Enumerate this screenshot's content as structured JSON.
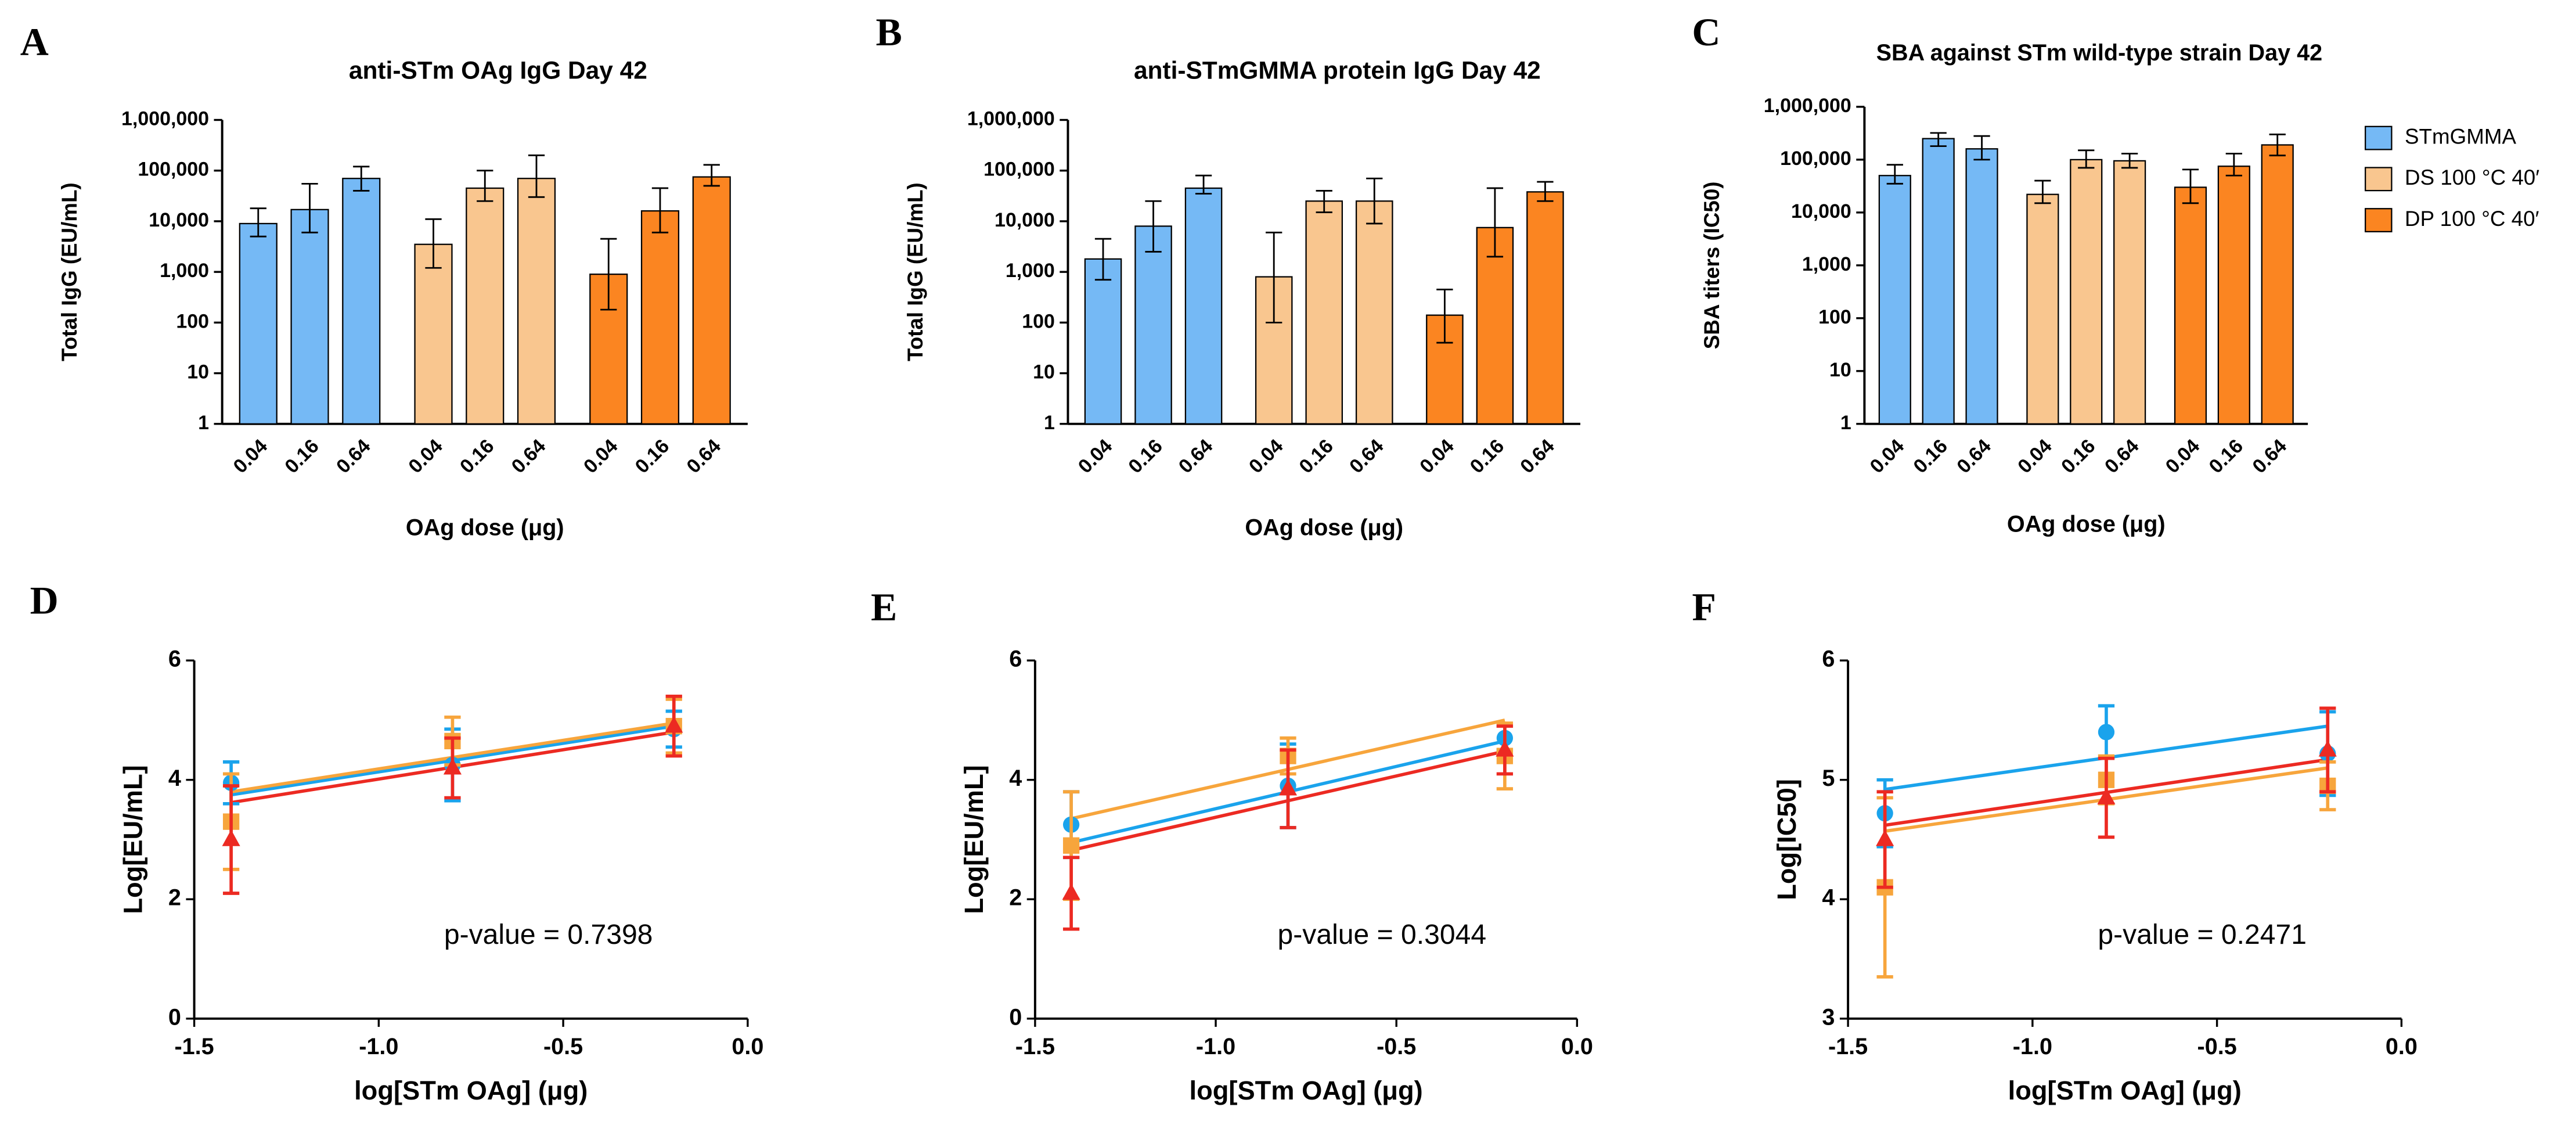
{
  "chart_data": [
    {
      "type": "bar",
      "panel": "A",
      "title": "anti-STm OAg IgG Day 42",
      "y_label": "Total IgG (EU/mL)",
      "x_label": "OAg dose (μg)",
      "log_scale": true,
      "categories": [
        "0.04",
        "0.16",
        "0.64"
      ],
      "series": [
        {
          "name": "STmGMMA",
          "color": "#75b9f5",
          "values": [
            9000,
            17000,
            70000
          ],
          "ci_low": [
            5000,
            6000,
            40000
          ],
          "ci_high": [
            18000,
            55000,
            120000
          ]
        },
        {
          "name": "DS 100 °C 40′",
          "color": "#f9c68f",
          "values": [
            3500,
            45000,
            70000
          ],
          "ci_low": [
            1200,
            25000,
            30000
          ],
          "ci_high": [
            11000,
            100000,
            200000
          ]
        },
        {
          "name": "DP 100 °C 40′",
          "color": "#fb8521",
          "values": [
            900,
            16000,
            75000
          ],
          "ci_low": [
            180,
            6000,
            50000
          ],
          "ci_high": [
            4500,
            45000,
            130000
          ]
        }
      ],
      "ylim": [
        1,
        1000000
      ],
      "yticks": [
        1,
        10,
        100,
        {
          "value": 1000,
          "label": "1,000"
        },
        {
          "value": 10000,
          "label": "10,000"
        },
        {
          "value": 100000,
          "label": "100,000"
        },
        {
          "value": 1000000,
          "label": "1,000,000"
        }
      ]
    },
    {
      "type": "bar",
      "panel": "B",
      "title": "anti-STmGMMA protein IgG Day 42",
      "y_label": "Total IgG (EU/mL)",
      "x_label": "OAg dose (μg)",
      "log_scale": true,
      "categories": [
        "0.04",
        "0.16",
        "0.64"
      ],
      "series": [
        {
          "name": "STmGMMA",
          "color": "#75b9f5",
          "values": [
            1800,
            8000,
            45000
          ],
          "ci_low": [
            700,
            2500,
            35000
          ],
          "ci_high": [
            4500,
            25000,
            80000
          ]
        },
        {
          "name": "DS 100 °C 40′",
          "color": "#f9c68f",
          "values": [
            800,
            25000,
            25000
          ],
          "ci_low": [
            100,
            15000,
            9000
          ],
          "ci_high": [
            6000,
            40000,
            70000
          ]
        },
        {
          "name": "DP 100 °C 40′",
          "color": "#fb8521",
          "values": [
            140,
            7500,
            38000
          ],
          "ci_low": [
            40,
            2000,
            25000
          ],
          "ci_high": [
            450,
            45000,
            60000
          ]
        }
      ],
      "ylim": [
        1,
        1000000
      ],
      "yticks": [
        1,
        10,
        100,
        {
          "value": 1000,
          "label": "1,000"
        },
        {
          "value": 10000,
          "label": "10,000"
        },
        {
          "value": 100000,
          "label": "100,000"
        },
        {
          "value": 1000000,
          "label": "1,000,000"
        }
      ]
    },
    {
      "type": "bar",
      "panel": "C",
      "title": "SBA against STm wild-type strain Day 42",
      "y_label": "SBA titers (IC50)",
      "x_label": "OAg dose (μg)",
      "log_scale": true,
      "legend": "right",
      "categories": [
        "0.04",
        "0.16",
        "0.64"
      ],
      "series": [
        {
          "name": "STmGMMA",
          "color": "#75b9f5",
          "values": [
            50000,
            250000,
            160000
          ],
          "ci_low": [
            35000,
            180000,
            100000
          ],
          "ci_high": [
            80000,
            320000,
            280000
          ]
        },
        {
          "name": "DS 100 °C 40′",
          "color": "#f9c68f",
          "values": [
            22000,
            100000,
            95000
          ],
          "ci_low": [
            15000,
            70000,
            70000
          ],
          "ci_high": [
            40000,
            150000,
            130000
          ]
        },
        {
          "name": "DP 100 °C 40′",
          "color": "#fb8521",
          "values": [
            30000,
            75000,
            190000
          ],
          "ci_low": [
            15000,
            50000,
            120000
          ],
          "ci_high": [
            65000,
            130000,
            300000
          ]
        }
      ],
      "ylim": [
        1,
        1000000
      ],
      "yticks": [
        1,
        10,
        100,
        {
          "value": 1000,
          "label": "1,000"
        },
        {
          "value": 10000,
          "label": "10,000"
        },
        {
          "value": 100000,
          "label": "100,000"
        },
        {
          "value": 1000000,
          "label": "1,000,000"
        }
      ]
    },
    {
      "type": "scatter",
      "panel": "D",
      "y_label": "Log[EU/mL]",
      "x_label": "log[STm OAg] (μg)",
      "annotation": "p-value = 0.7398",
      "x": [
        -1.4,
        -0.8,
        -0.2
      ],
      "fit_x": [
        -1.4,
        -0.2
      ],
      "series": [
        {
          "color": "#1aa3ec",
          "marker": "circle",
          "values": [
            3.95,
            4.25,
            4.85
          ],
          "errors": [
            0.35,
            0.6,
            0.3
          ],
          "fit": [
            3.75,
            4.9
          ]
        },
        {
          "color": "#f7a53c",
          "marker": "square",
          "values": [
            3.3,
            4.65,
            4.9
          ],
          "errors": [
            0.8,
            0.4,
            0.45
          ],
          "fit": [
            3.8,
            4.95
          ]
        },
        {
          "color": "#ec2a22",
          "marker": "triangle",
          "values": [
            3.0,
            4.2,
            4.9
          ],
          "errors": [
            0.9,
            0.5,
            0.5
          ],
          "fit": [
            3.62,
            4.8
          ]
        }
      ],
      "xlim": [
        -1.5,
        0
      ],
      "xticks": [
        -1.5,
        {
          "value": -1,
          "label": "-1.0"
        },
        -0.5,
        {
          "value": 0,
          "label": "0.0"
        }
      ],
      "ylim": [
        0,
        6
      ],
      "yticks": [
        0,
        2,
        4,
        6
      ]
    },
    {
      "type": "scatter",
      "panel": "E",
      "y_label": "Log[EU/mL]",
      "x_label": "log[STm OAg] (μg)",
      "annotation": "p-value = 0.3044",
      "x": [
        -1.4,
        -0.8,
        -0.2
      ],
      "fit_x": [
        -1.4,
        -0.2
      ],
      "series": [
        {
          "color": "#1aa3ec",
          "marker": "circle",
          "values": [
            3.25,
            3.9,
            4.7
          ],
          "errors": [
            0.55,
            0.7,
            0.2
          ],
          "fit": [
            2.95,
            4.65
          ]
        },
        {
          "color": "#f7a53c",
          "marker": "square",
          "values": [
            2.9,
            4.4,
            4.4
          ],
          "errors": [
            0.9,
            0.3,
            0.55
          ],
          "fit": [
            3.35,
            5.0
          ]
        },
        {
          "color": "#ec2a22",
          "marker": "triangle",
          "values": [
            2.1,
            3.85,
            4.5
          ],
          "errors": [
            0.6,
            0.65,
            0.4
          ],
          "fit": [
            2.82,
            4.48
          ]
        }
      ],
      "xlim": [
        -1.5,
        0
      ],
      "xticks": [
        -1.5,
        {
          "value": -1,
          "label": "-1.0"
        },
        -0.5,
        {
          "value": 0,
          "label": "0.0"
        }
      ],
      "ylim": [
        0,
        6
      ],
      "yticks": [
        0,
        2,
        4,
        6
      ]
    },
    {
      "type": "scatter",
      "panel": "F",
      "y_label": "Log[IC50]",
      "x_label": "log[STm OAg] (μg)",
      "annotation": "p-value = 0.2471",
      "x": [
        -1.4,
        -0.8,
        -0.2
      ],
      "fit_x": [
        -1.4,
        -0.2
      ],
      "series": [
        {
          "color": "#1aa3ec",
          "marker": "circle",
          "values": [
            4.72,
            5.4,
            5.22
          ],
          "errors": [
            0.28,
            0.22,
            0.35
          ],
          "fit": [
            4.92,
            5.45
          ]
        },
        {
          "color": "#f7a53c",
          "marker": "square",
          "values": [
            4.1,
            5.0,
            4.95
          ],
          "errors": [
            0.75,
            0.2,
            0.2
          ],
          "fit": [
            4.57,
            5.1
          ]
        },
        {
          "color": "#ec2a22",
          "marker": "triangle",
          "values": [
            4.5,
            4.85,
            5.25
          ],
          "errors": [
            0.4,
            0.33,
            0.35
          ],
          "fit": [
            4.62,
            5.17
          ]
        }
      ],
      "xlim": [
        -1.5,
        0
      ],
      "xticks": [
        -1.5,
        {
          "value": -1,
          "label": "-1.0"
        },
        -0.5,
        {
          "value": 0,
          "label": "0.0"
        }
      ],
      "ylim": [
        3,
        6
      ],
      "yticks": [
        3,
        4,
        5,
        6
      ]
    }
  ]
}
